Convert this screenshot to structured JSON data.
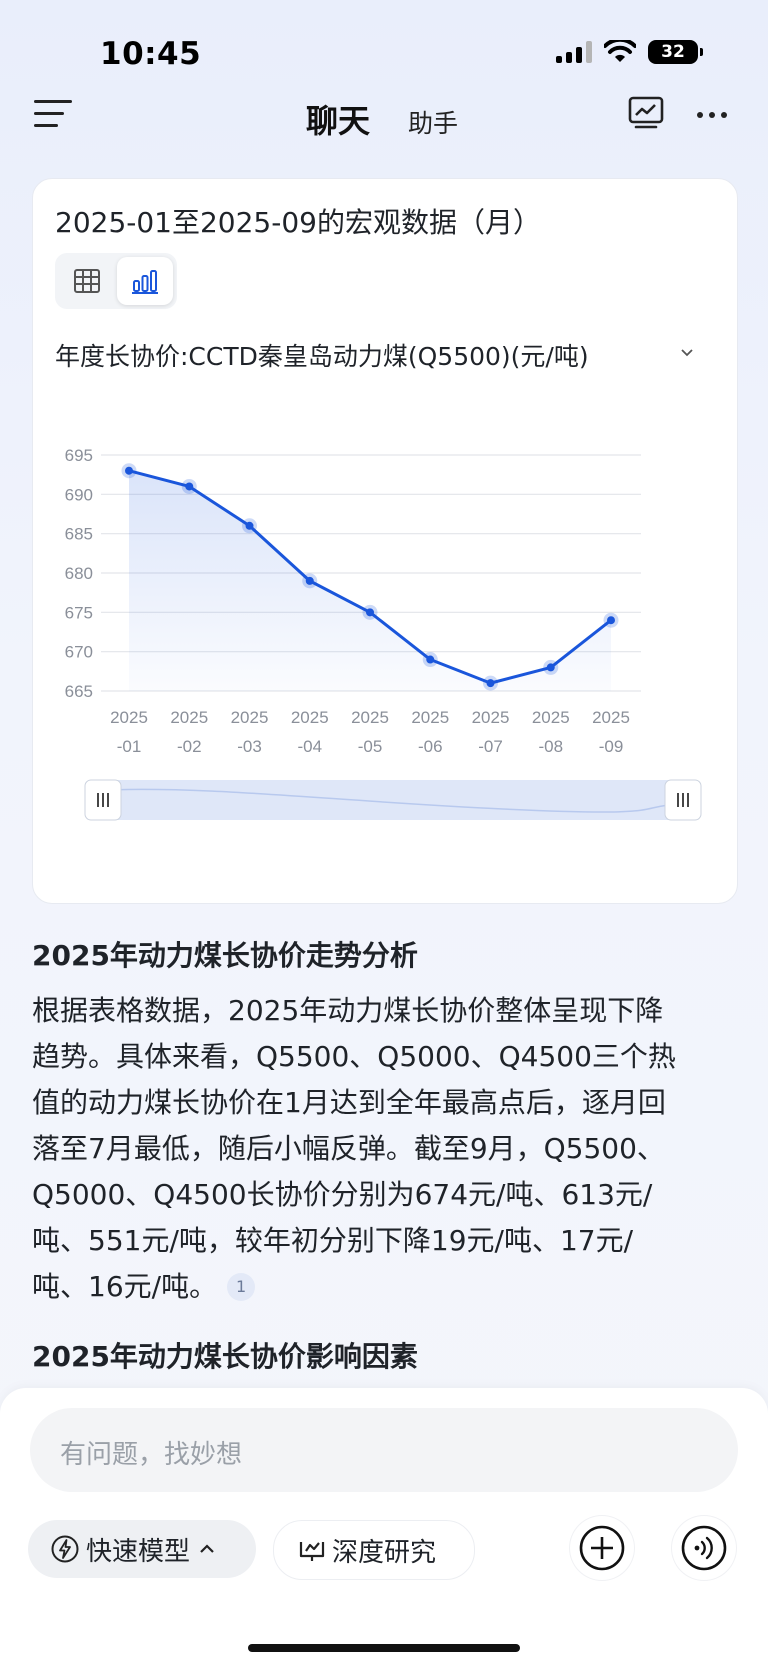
{
  "status_bar": {
    "time": "10:45",
    "battery": "32"
  },
  "nav": {
    "title": "聊天",
    "subtitle": "助手"
  },
  "card": {
    "title": "2025-01至2025-09的宏观数据（月）",
    "metric_selector": "年度长协价:CCTD秦皇岛动力煤(Q5500)(元/吨)"
  },
  "chart_data": {
    "type": "line",
    "x": [
      "2025-01",
      "2025-02",
      "2025-03",
      "2025-04",
      "2025-05",
      "2025-06",
      "2025-07",
      "2025-08",
      "2025-09"
    ],
    "x_tick_labels": [
      [
        "2025",
        "-01"
      ],
      [
        "2025",
        "-02"
      ],
      [
        "2025",
        "-03"
      ],
      [
        "2025",
        "-04"
      ],
      [
        "2025",
        "-05"
      ],
      [
        "2025",
        "-06"
      ],
      [
        "2025",
        "-07"
      ],
      [
        "2025",
        "-08"
      ],
      [
        "2025",
        "-09"
      ]
    ],
    "series": [
      {
        "values": [
          693,
          691,
          686,
          679,
          675,
          669,
          666,
          668,
          674
        ]
      }
    ],
    "yticks": [
      "695",
      "690",
      "685",
      "680",
      "675",
      "670",
      "665"
    ],
    "ylim": [
      665,
      695
    ],
    "grid": true,
    "area_fill": true,
    "color": "#1a56db",
    "zoom_slider": {
      "start": 0,
      "end": 1
    }
  },
  "analysis": {
    "heading1": "2025年动力煤长协价走势分析",
    "lines": [
      "根据表格数据，2025年动力煤长协价整体呈现下降",
      "趋势。具体来看，Q5500、Q5000、Q4500三个热",
      "值的动力煤长协价在1月达到全年最高点后，逐月回",
      "落至7月最低，随后小幅反弹。截至9月，Q5500、",
      "Q5000、Q4500长协价分别为674元/吨、613元/",
      "吨、551元/吨，较年初分别下降19元/吨、17元/",
      "吨、16元/吨。"
    ],
    "citation": "1",
    "heading2": "2025年动力煤长协价影响因素"
  },
  "composer": {
    "placeholder": "有问题，找妙想",
    "fast_model": "快速模型",
    "deep_research": "深度研究"
  },
  "icons": {
    "menu": "menu-icon",
    "chart": "chart-icon",
    "more": "more-icon",
    "table": "table-icon",
    "bar": "bar-chart-icon",
    "bolt": "bolt-icon",
    "deep": "deep-research-icon",
    "plus": "plus-icon",
    "voice": "voice-icon"
  }
}
